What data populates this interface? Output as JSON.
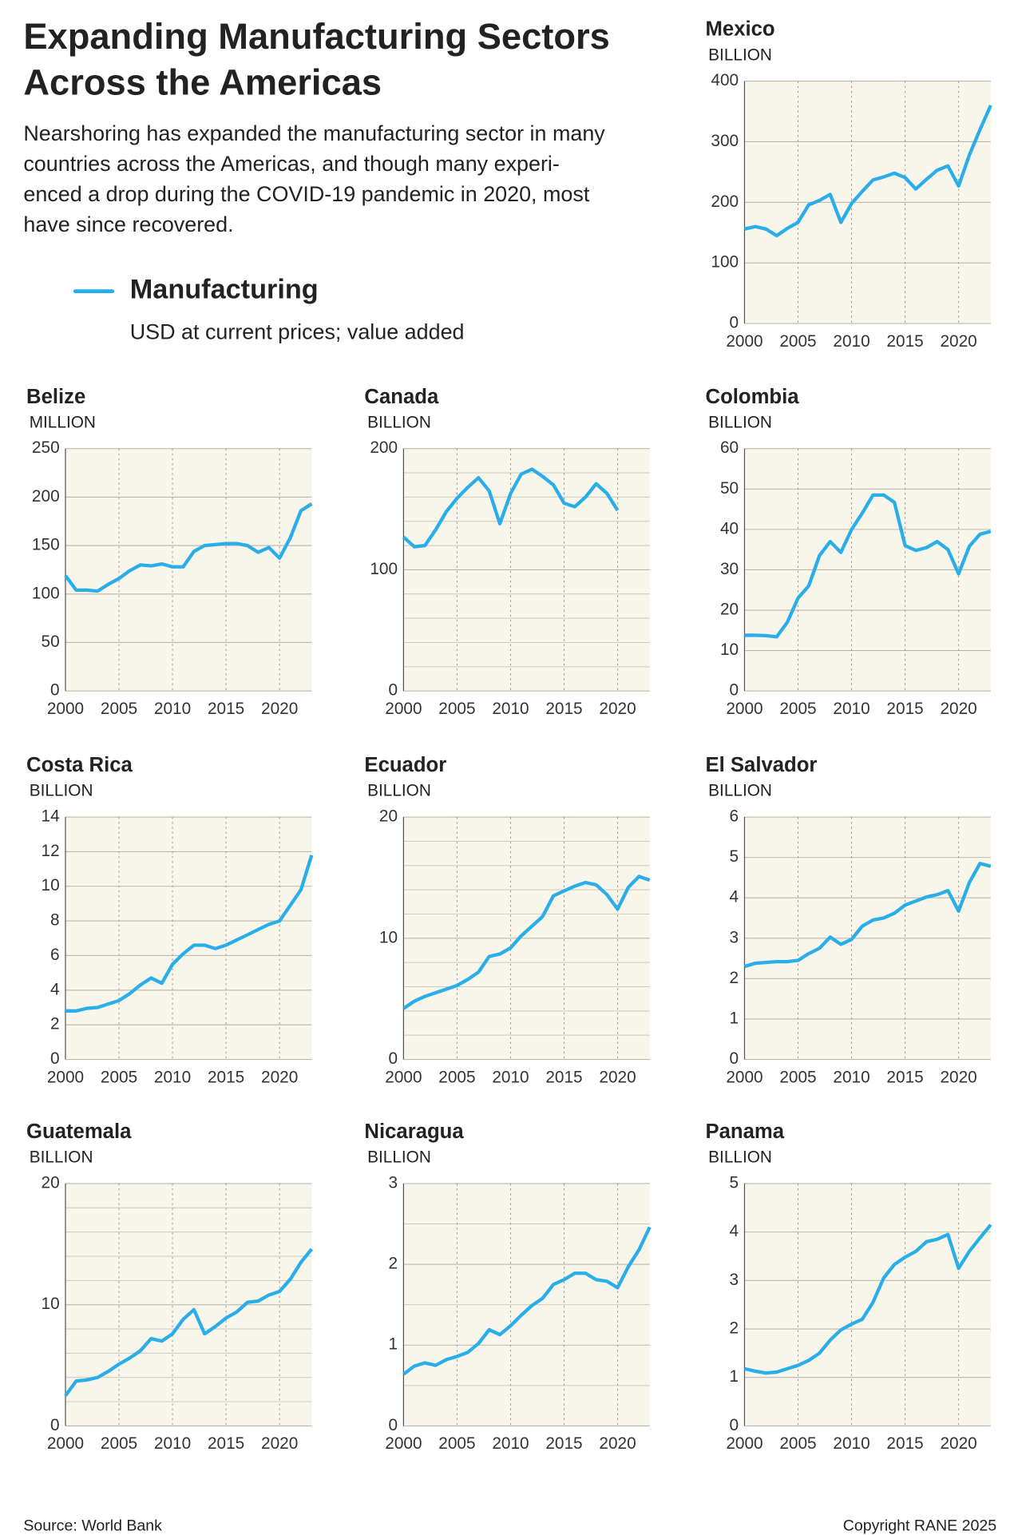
{
  "header": {
    "title": [
      "Expanding Manufacturing Sectors",
      "Across the Americas"
    ],
    "subtitle": [
      "Nearshoring has expanded the manufacturing sector in many",
      "countries across the Americas, and though many experi-",
      "enced a drop during the COVID-19 pandemic in 2020, most",
      "have since recovered."
    ]
  },
  "legend": {
    "name": "Manufacturing",
    "note": "USD at current prices; value added",
    "color": "#2aaeea"
  },
  "footer": {
    "source": "Source: World Bank",
    "copyright": "Copyright RANE 2025"
  },
  "chart_data": [
    {
      "type": "line",
      "title": "Mexico",
      "y_label": "BILLION",
      "color": "#2aaeea",
      "x": [
        2000,
        2001,
        2002,
        2003,
        2004,
        2005,
        2006,
        2007,
        2008,
        2009,
        2010,
        2011,
        2012,
        2013,
        2014,
        2015,
        2016,
        2017,
        2018,
        2019,
        2020,
        2021,
        2022,
        2023
      ],
      "values": [
        156,
        160,
        156,
        145,
        157,
        167,
        196,
        203,
        213,
        167,
        198,
        218,
        237,
        242,
        248,
        241,
        222,
        238,
        253,
        260,
        227,
        278,
        320,
        360
      ],
      "xlim": [
        2000,
        2023
      ],
      "xticks": [
        2000,
        2005,
        2010,
        2015,
        2020
      ],
      "ylim": [
        0,
        400
      ],
      "yticks": [
        0,
        100,
        200,
        300,
        400
      ]
    },
    {
      "type": "line",
      "title": "Belize",
      "y_label": "MILLION",
      "color": "#2aaeea",
      "x": [
        2000,
        2001,
        2002,
        2003,
        2004,
        2005,
        2006,
        2007,
        2008,
        2009,
        2010,
        2011,
        2012,
        2013,
        2014,
        2015,
        2016,
        2017,
        2018,
        2019,
        2020,
        2021,
        2022,
        2023
      ],
      "values": [
        119,
        104,
        104,
        103,
        110,
        116,
        124,
        130,
        129,
        131,
        128,
        128,
        144,
        150,
        151,
        152,
        152,
        150,
        143,
        148,
        137,
        158,
        186,
        193
      ],
      "xlim": [
        2000,
        2023
      ],
      "xticks": [
        2000,
        2005,
        2010,
        2015,
        2020
      ],
      "ylim": [
        0,
        250
      ],
      "yticks": [
        0,
        50,
        100,
        150,
        200,
        250
      ]
    },
    {
      "type": "line",
      "title": "Canada",
      "y_label": "BILLION",
      "color": "#2aaeea",
      "x": [
        2000,
        2001,
        2002,
        2003,
        2004,
        2005,
        2006,
        2007,
        2008,
        2009,
        2010,
        2011,
        2012,
        2013,
        2014,
        2015,
        2016,
        2017,
        2018,
        2019,
        2020,
        2021,
        2022,
        2023
      ],
      "values": [
        127,
        119,
        120,
        133,
        148,
        159,
        168,
        176,
        165,
        138,
        163,
        179,
        183,
        177,
        170,
        155,
        152,
        160,
        171,
        163,
        149,
        null,
        null,
        null
      ],
      "xlim": [
        2000,
        2023
      ],
      "xticks": [
        2000,
        2005,
        2010,
        2015,
        2020
      ],
      "ylim": [
        0,
        200
      ],
      "yticks": [
        0,
        100,
        200
      ],
      "yminor": [
        20,
        40,
        60,
        80,
        120,
        140,
        160,
        180
      ]
    },
    {
      "type": "line",
      "title": "Colombia",
      "y_label": "BILLION",
      "color": "#2aaeea",
      "x": [
        2000,
        2001,
        2002,
        2003,
        2004,
        2005,
        2006,
        2007,
        2008,
        2009,
        2010,
        2011,
        2012,
        2013,
        2014,
        2015,
        2016,
        2017,
        2018,
        2019,
        2020,
        2021,
        2022,
        2023
      ],
      "values": [
        13.8,
        13.8,
        13.7,
        13.4,
        17,
        23,
        26,
        33.5,
        37,
        34.3,
        40,
        44,
        48.5,
        48.5,
        46.7,
        36,
        34.8,
        35.5,
        37,
        35,
        29,
        35.8,
        38.8,
        39.5
      ],
      "xlim": [
        2000,
        2023
      ],
      "xticks": [
        2000,
        2005,
        2010,
        2015,
        2020
      ],
      "ylim": [
        0,
        60
      ],
      "yticks": [
        0,
        10,
        20,
        30,
        40,
        50,
        60
      ]
    },
    {
      "type": "line",
      "title": "Costa Rica",
      "y_label": "BILLION",
      "color": "#2aaeea",
      "x": [
        2000,
        2001,
        2002,
        2003,
        2004,
        2005,
        2006,
        2007,
        2008,
        2009,
        2010,
        2011,
        2012,
        2013,
        2014,
        2015,
        2016,
        2017,
        2018,
        2019,
        2020,
        2021,
        2022,
        2023
      ],
      "values": [
        2.8,
        2.8,
        2.95,
        3.0,
        3.2,
        3.4,
        3.8,
        4.3,
        4.7,
        4.4,
        5.5,
        6.1,
        6.6,
        6.6,
        6.4,
        6.6,
        6.9,
        7.2,
        7.5,
        7.8,
        8.0,
        8.9,
        9.8,
        11.8
      ],
      "xlim": [
        2000,
        2023
      ],
      "xticks": [
        2000,
        2005,
        2010,
        2015,
        2020
      ],
      "ylim": [
        0,
        14
      ],
      "yticks": [
        0,
        2,
        4,
        6,
        8,
        10,
        12,
        14
      ]
    },
    {
      "type": "line",
      "title": "Ecuador",
      "y_label": "BILLION",
      "color": "#2aaeea",
      "x": [
        2000,
        2001,
        2002,
        2003,
        2004,
        2005,
        2006,
        2007,
        2008,
        2009,
        2010,
        2011,
        2012,
        2013,
        2014,
        2015,
        2016,
        2017,
        2018,
        2019,
        2020,
        2021,
        2022,
        2023
      ],
      "values": [
        4.2,
        4.8,
        5.2,
        5.5,
        5.8,
        6.1,
        6.6,
        7.2,
        8.5,
        8.7,
        9.2,
        10.2,
        11.0,
        11.8,
        13.5,
        13.9,
        14.3,
        14.6,
        14.4,
        13.6,
        12.4,
        14.2,
        15.1,
        14.8
      ],
      "xlim": [
        2000,
        2023
      ],
      "xticks": [
        2000,
        2005,
        2010,
        2015,
        2020
      ],
      "ylim": [
        0,
        20
      ],
      "yticks": [
        0,
        10,
        20
      ],
      "yminor": [
        2,
        4,
        6,
        8,
        12,
        14,
        16,
        18
      ]
    },
    {
      "type": "line",
      "title": "El Salvador",
      "y_label": "BILLION",
      "color": "#2aaeea",
      "x": [
        2000,
        2001,
        2002,
        2003,
        2004,
        2005,
        2006,
        2007,
        2008,
        2009,
        2010,
        2011,
        2012,
        2013,
        2014,
        2015,
        2016,
        2017,
        2018,
        2019,
        2020,
        2021,
        2022,
        2023
      ],
      "values": [
        2.3,
        2.38,
        2.4,
        2.42,
        2.42,
        2.45,
        2.62,
        2.75,
        3.03,
        2.85,
        2.97,
        3.3,
        3.45,
        3.5,
        3.62,
        3.82,
        3.92,
        4.02,
        4.08,
        4.18,
        3.67,
        4.38,
        4.85,
        4.78
      ],
      "xlim": [
        2000,
        2023
      ],
      "xticks": [
        2000,
        2005,
        2010,
        2015,
        2020
      ],
      "ylim": [
        0,
        6
      ],
      "yticks": [
        0,
        1,
        2,
        3,
        4,
        5,
        6
      ]
    },
    {
      "type": "line",
      "title": "Guatemala",
      "y_label": "BILLION",
      "color": "#2aaeea",
      "x": [
        2000,
        2001,
        2002,
        2003,
        2004,
        2005,
        2006,
        2007,
        2008,
        2009,
        2010,
        2011,
        2012,
        2013,
        2014,
        2015,
        2016,
        2017,
        2018,
        2019,
        2020,
        2021,
        2022,
        2023
      ],
      "values": [
        2.5,
        3.7,
        3.8,
        4.0,
        4.5,
        5.1,
        5.6,
        6.2,
        7.2,
        7.0,
        7.6,
        8.8,
        9.6,
        7.6,
        8.2,
        8.9,
        9.4,
        10.2,
        10.3,
        10.8,
        11.1,
        12.1,
        13.5,
        14.6
      ],
      "xlim": [
        2000,
        2023
      ],
      "xticks": [
        2000,
        2005,
        2010,
        2015,
        2020
      ],
      "ylim": [
        0,
        20
      ],
      "yticks": [
        0,
        10,
        20
      ],
      "yminor": [
        2,
        4,
        6,
        8,
        12,
        14,
        16,
        18
      ]
    },
    {
      "type": "line",
      "title": "Nicaragua",
      "y_label": "BILLION",
      "color": "#2aaeea",
      "x": [
        2000,
        2001,
        2002,
        2003,
        2004,
        2005,
        2006,
        2007,
        2008,
        2009,
        2010,
        2011,
        2012,
        2013,
        2014,
        2015,
        2016,
        2017,
        2018,
        2019,
        2020,
        2021,
        2022,
        2023
      ],
      "values": [
        0.64,
        0.74,
        0.78,
        0.75,
        0.82,
        0.86,
        0.91,
        1.02,
        1.19,
        1.13,
        1.24,
        1.37,
        1.49,
        1.58,
        1.75,
        1.81,
        1.89,
        1.89,
        1.81,
        1.79,
        1.71,
        1.97,
        2.18,
        2.46
      ],
      "xlim": [
        2000,
        2023
      ],
      "xticks": [
        2000,
        2005,
        2010,
        2015,
        2020
      ],
      "ylim": [
        0,
        3
      ],
      "yticks": [
        0,
        1,
        2,
        3
      ],
      "yminor": [
        0.5,
        1.5,
        2.5
      ]
    },
    {
      "type": "line",
      "title": "Panama",
      "y_label": "BILLION",
      "color": "#2aaeea",
      "x": [
        2000,
        2001,
        2002,
        2003,
        2004,
        2005,
        2006,
        2007,
        2008,
        2009,
        2010,
        2011,
        2012,
        2013,
        2014,
        2015,
        2016,
        2017,
        2018,
        2019,
        2020,
        2021,
        2022,
        2023
      ],
      "values": [
        1.18,
        1.13,
        1.09,
        1.11,
        1.18,
        1.25,
        1.35,
        1.5,
        1.77,
        1.98,
        2.1,
        2.2,
        2.55,
        3.05,
        3.33,
        3.48,
        3.6,
        3.8,
        3.85,
        3.95,
        3.25,
        3.6,
        3.88,
        4.15
      ],
      "xlim": [
        2000,
        2023
      ],
      "xticks": [
        2000,
        2005,
        2010,
        2015,
        2020
      ],
      "ylim": [
        0,
        5
      ],
      "yticks": [
        0,
        1,
        2,
        3,
        4,
        5
      ]
    }
  ]
}
